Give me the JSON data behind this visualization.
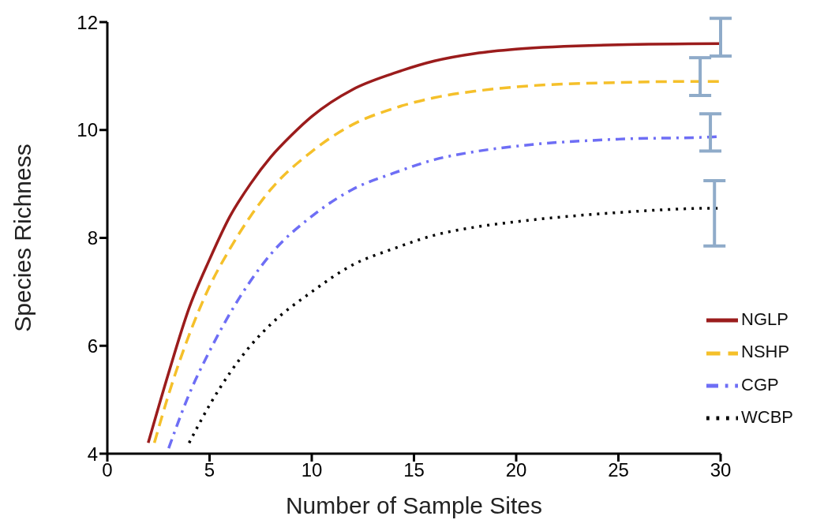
{
  "chart_data": {
    "type": "line",
    "xlabel": "Number of Sample Sites",
    "ylabel": "Species Richness",
    "xlim": [
      0,
      30
    ],
    "xticks": [
      0,
      5,
      10,
      15,
      20,
      25,
      30
    ],
    "ylim": [
      4,
      12
    ],
    "yticks": [
      4,
      6,
      8,
      10,
      12
    ],
    "grid": false,
    "legend": "bottom right",
    "marker": "none",
    "series": [
      {
        "name": "NGLP",
        "color": "#9b1c1c",
        "line_style": "solid",
        "x": [
          2,
          3,
          4,
          5,
          6,
          7,
          8,
          9,
          10,
          12,
          14,
          16,
          18,
          20,
          25,
          30
        ],
        "values": [
          4.2,
          5.5,
          6.7,
          7.6,
          8.4,
          9.0,
          9.5,
          9.9,
          10.25,
          10.75,
          11.05,
          11.28,
          11.42,
          11.5,
          11.58,
          11.6
        ],
        "errors": [
          null,
          null,
          null,
          null,
          null,
          null,
          null,
          null,
          null,
          null,
          null,
          null,
          null,
          null,
          null,
          [
            11.37,
            12.07
          ]
        ]
      },
      {
        "name": "NSHP",
        "color": "#f5c02a",
        "line_style": "dashed",
        "x": [
          2.3,
          3,
          4,
          5,
          6,
          7,
          8,
          10,
          12,
          14,
          16,
          18,
          20,
          25,
          29,
          30
        ],
        "values": [
          4.2,
          5.1,
          6.2,
          7.1,
          7.8,
          8.4,
          8.9,
          9.6,
          10.1,
          10.4,
          10.6,
          10.72,
          10.8,
          10.88,
          10.9,
          10.9
        ],
        "errors": [
          null,
          null,
          null,
          null,
          null,
          null,
          null,
          null,
          null,
          null,
          null,
          null,
          null,
          null,
          [
            10.64,
            11.34
          ],
          null
        ]
      },
      {
        "name": "CGP",
        "color": "#6e6ef5",
        "line_style": "dashdot",
        "x": [
          3,
          4,
          5,
          6,
          7,
          8,
          10,
          12,
          14,
          16,
          18,
          20,
          25,
          29.5,
          30
        ],
        "values": [
          4.1,
          5.1,
          5.9,
          6.6,
          7.2,
          7.7,
          8.4,
          8.9,
          9.2,
          9.45,
          9.6,
          9.7,
          9.83,
          9.87,
          9.88
        ],
        "errors": [
          null,
          null,
          null,
          null,
          null,
          null,
          null,
          null,
          null,
          null,
          null,
          null,
          null,
          [
            9.61,
            10.3
          ],
          null
        ]
      },
      {
        "name": "WCBP",
        "color": "#000000",
        "line_style": "dotted",
        "x": [
          4,
          5,
          6,
          7,
          8,
          10,
          12,
          14,
          16,
          18,
          20,
          25,
          29.7,
          30
        ],
        "values": [
          4.2,
          4.9,
          5.5,
          6.0,
          6.4,
          7.0,
          7.5,
          7.8,
          8.05,
          8.2,
          8.3,
          8.47,
          8.55,
          8.55
        ],
        "errors": [
          null,
          null,
          null,
          null,
          null,
          null,
          null,
          null,
          null,
          null,
          null,
          null,
          [
            7.85,
            9.06
          ],
          null
        ]
      }
    ]
  }
}
